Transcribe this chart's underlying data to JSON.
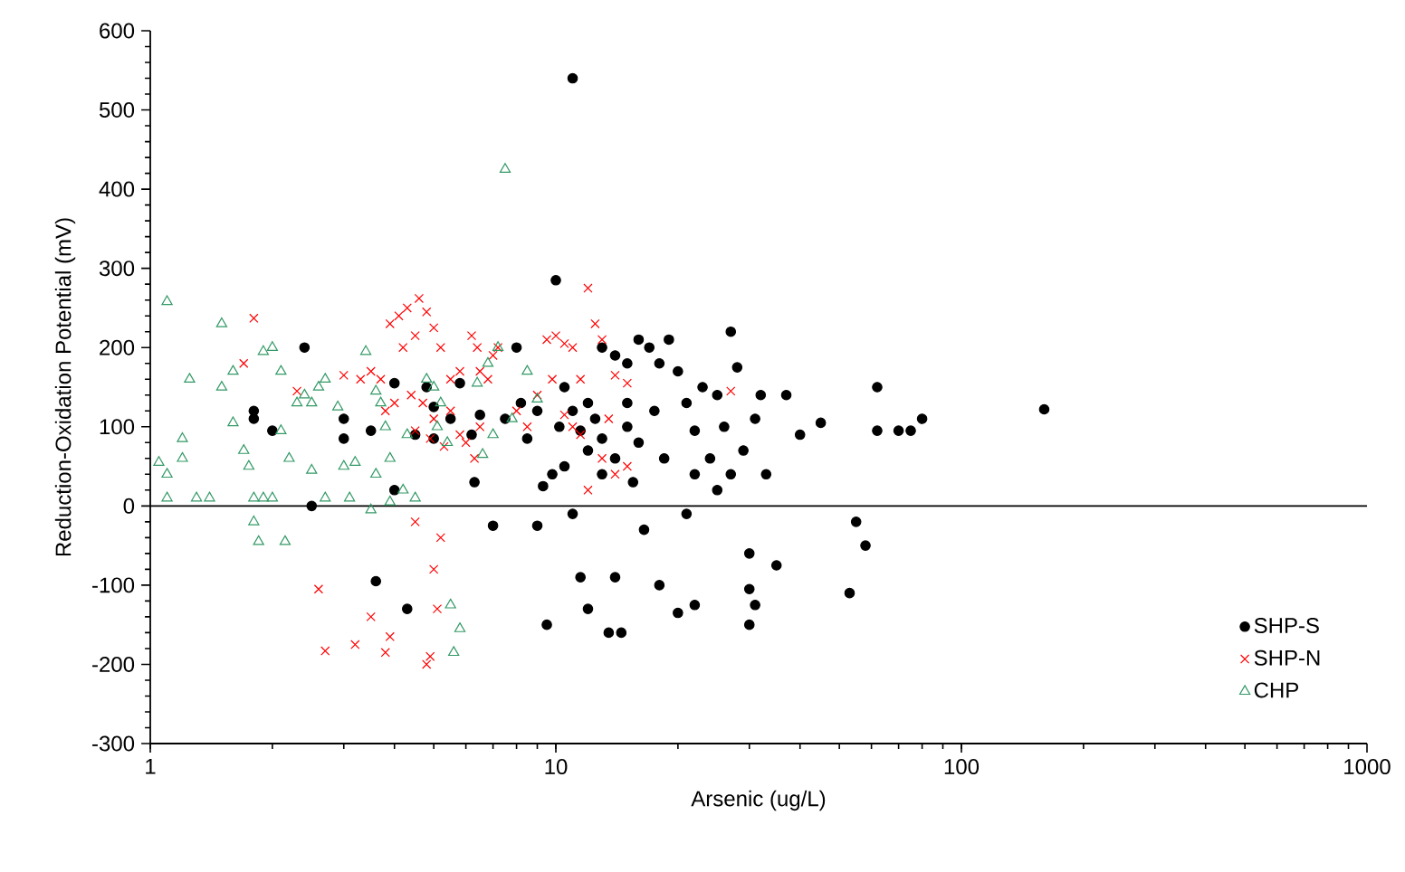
{
  "chart_data": {
    "type": "scatter",
    "xlabel": "Arsenic (ug/L)",
    "ylabel": "Reduction-Oxidation Potential (mV)",
    "log": "x",
    "xlim": [
      1,
      1000
    ],
    "ylim": [
      -300,
      600
    ],
    "xticks": [
      1,
      10,
      100,
      1000
    ],
    "yticks": [
      -300,
      -200,
      -100,
      0,
      100,
      200,
      300,
      400,
      500,
      600
    ],
    "grid": false,
    "legend": "bottom right",
    "ref_lines": [
      {
        "axis": "y",
        "value": 0,
        "color": "#000000"
      }
    ],
    "series": [
      {
        "name": "SHP-S",
        "color": "#000000",
        "marker": "circle",
        "x": [
          1.8,
          1.8,
          2,
          2.4,
          2.5,
          3,
          3,
          3.5,
          3.6,
          4,
          4,
          4.3,
          4.5,
          4.8,
          5,
          5,
          5.5,
          5.8,
          6.2,
          6.3,
          6.5,
          7,
          7.5,
          8,
          8.2,
          8.5,
          9,
          9,
          9.3,
          9.5,
          9.8,
          10,
          10.2,
          10.5,
          10.5,
          11,
          11,
          11,
          11.5,
          11.5,
          12,
          12,
          12,
          12.5,
          13,
          13,
          13,
          13.5,
          14,
          14,
          14,
          14.5,
          15,
          15,
          15,
          15.5,
          16,
          16,
          16.5,
          17,
          17.5,
          18,
          18,
          18.5,
          19,
          20,
          20,
          21,
          21,
          22,
          22,
          22,
          23,
          24,
          25,
          25,
          26,
          27,
          27,
          28,
          29,
          30,
          30,
          31,
          30,
          31,
          32,
          33,
          35,
          37,
          40,
          45,
          53,
          55,
          58,
          62,
          62,
          70,
          75,
          80,
          160
        ],
        "values": [
          110,
          120,
          95,
          200,
          0,
          110,
          85,
          95,
          -95,
          155,
          20,
          -130,
          90,
          150,
          85,
          125,
          110,
          155,
          90,
          30,
          115,
          -25,
          110,
          200,
          130,
          85,
          -25,
          120,
          25,
          -150,
          40,
          285,
          100,
          150,
          50,
          540,
          -10,
          120,
          95,
          -90,
          130,
          70,
          -130,
          110,
          200,
          85,
          40,
          -160,
          190,
          60,
          -90,
          -160,
          180,
          130,
          100,
          30,
          210,
          80,
          -30,
          200,
          120,
          180,
          -100,
          60,
          210,
          170,
          -135,
          130,
          -10,
          95,
          -125,
          40,
          150,
          60,
          140,
          20,
          100,
          220,
          40,
          175,
          70,
          -60,
          -105,
          -125,
          -150,
          110,
          140,
          40,
          -75,
          140,
          90,
          105,
          -110,
          -20,
          -50,
          150,
          95,
          95,
          95,
          110,
          122
        ]
      },
      {
        "name": "SHP-N",
        "color": "#ff0000",
        "marker": "cross",
        "x": [
          1.7,
          1.8,
          2.3,
          2.6,
          2.7,
          3.2,
          3.5,
          3.8,
          3.9,
          4.8,
          4.9,
          5.1,
          5,
          5.2,
          4.5,
          3,
          3.3,
          3.5,
          3.7,
          3.9,
          4.1,
          4.3,
          4.6,
          4.8,
          4.5,
          4.2,
          5,
          5.2,
          5.5,
          5.8,
          6.2,
          6.4,
          6.5,
          6.8,
          7,
          7.2,
          3.8,
          4,
          4.4,
          4.7,
          5,
          5.5,
          5.8,
          6,
          6.3,
          6.5,
          4.5,
          4.9,
          5.3,
          8,
          8.5,
          9,
          9.5,
          9.8,
          10,
          10.5,
          10.5,
          11,
          11,
          11.5,
          11.5,
          12,
          12,
          12.5,
          13,
          13,
          13.5,
          14,
          14,
          15,
          15,
          27
        ],
        "values": [
          180,
          237,
          145,
          -105,
          -183,
          -175,
          -140,
          -185,
          -165,
          -200,
          -190,
          -130,
          -80,
          -40,
          -20,
          165,
          160,
          170,
          160,
          230,
          240,
          250,
          262,
          245,
          215,
          200,
          225,
          200,
          160,
          170,
          215,
          200,
          170,
          160,
          190,
          200,
          120,
          130,
          140,
          130,
          110,
          120,
          90,
          80,
          60,
          100,
          95,
          85,
          75,
          120,
          100,
          140,
          210,
          160,
          215,
          205,
          115,
          200,
          100,
          160,
          90,
          275,
          20,
          230,
          210,
          60,
          110,
          165,
          40,
          155,
          50,
          145
        ]
      },
      {
        "name": "CHP",
        "color": "#339966",
        "marker": "triangle",
        "x": [
          1.1,
          1.1,
          1.05,
          1.2,
          1.25,
          1.1,
          1.2,
          1.3,
          1.4,
          1.5,
          1.5,
          1.6,
          1.6,
          1.7,
          1.75,
          1.8,
          1.9,
          1.8,
          1.85,
          1.9,
          2,
          2.1,
          2.1,
          2.2,
          2,
          2.15,
          2.3,
          2.4,
          2.5,
          2.6,
          2.7,
          2.5,
          2.7,
          3.1,
          3,
          3.2,
          3.4,
          3.6,
          3.7,
          3.8,
          3.9,
          3.5,
          3.9,
          4.2,
          4.5,
          4.8,
          5,
          5.2,
          5.1,
          5.4,
          5.6,
          5.8,
          5.5,
          6.4,
          6.8,
          7.2,
          7.5,
          7.8,
          8.5,
          9,
          7,
          6.6,
          4.3,
          3.6,
          2.9
        ],
        "values": [
          258,
          10,
          55,
          85,
          160,
          40,
          60,
          10,
          10,
          230,
          150,
          170,
          105,
          70,
          50,
          10,
          10,
          -20,
          -45,
          195,
          200,
          170,
          95,
          60,
          10,
          -45,
          130,
          140,
          130,
          150,
          160,
          45,
          10,
          10,
          50,
          55,
          195,
          145,
          130,
          100,
          60,
          -5,
          5,
          20,
          10,
          160,
          150,
          130,
          100,
          80,
          -185,
          -155,
          -125,
          155,
          180,
          200,
          425,
          110,
          170,
          135,
          90,
          65,
          90,
          40,
          125
        ]
      }
    ]
  }
}
